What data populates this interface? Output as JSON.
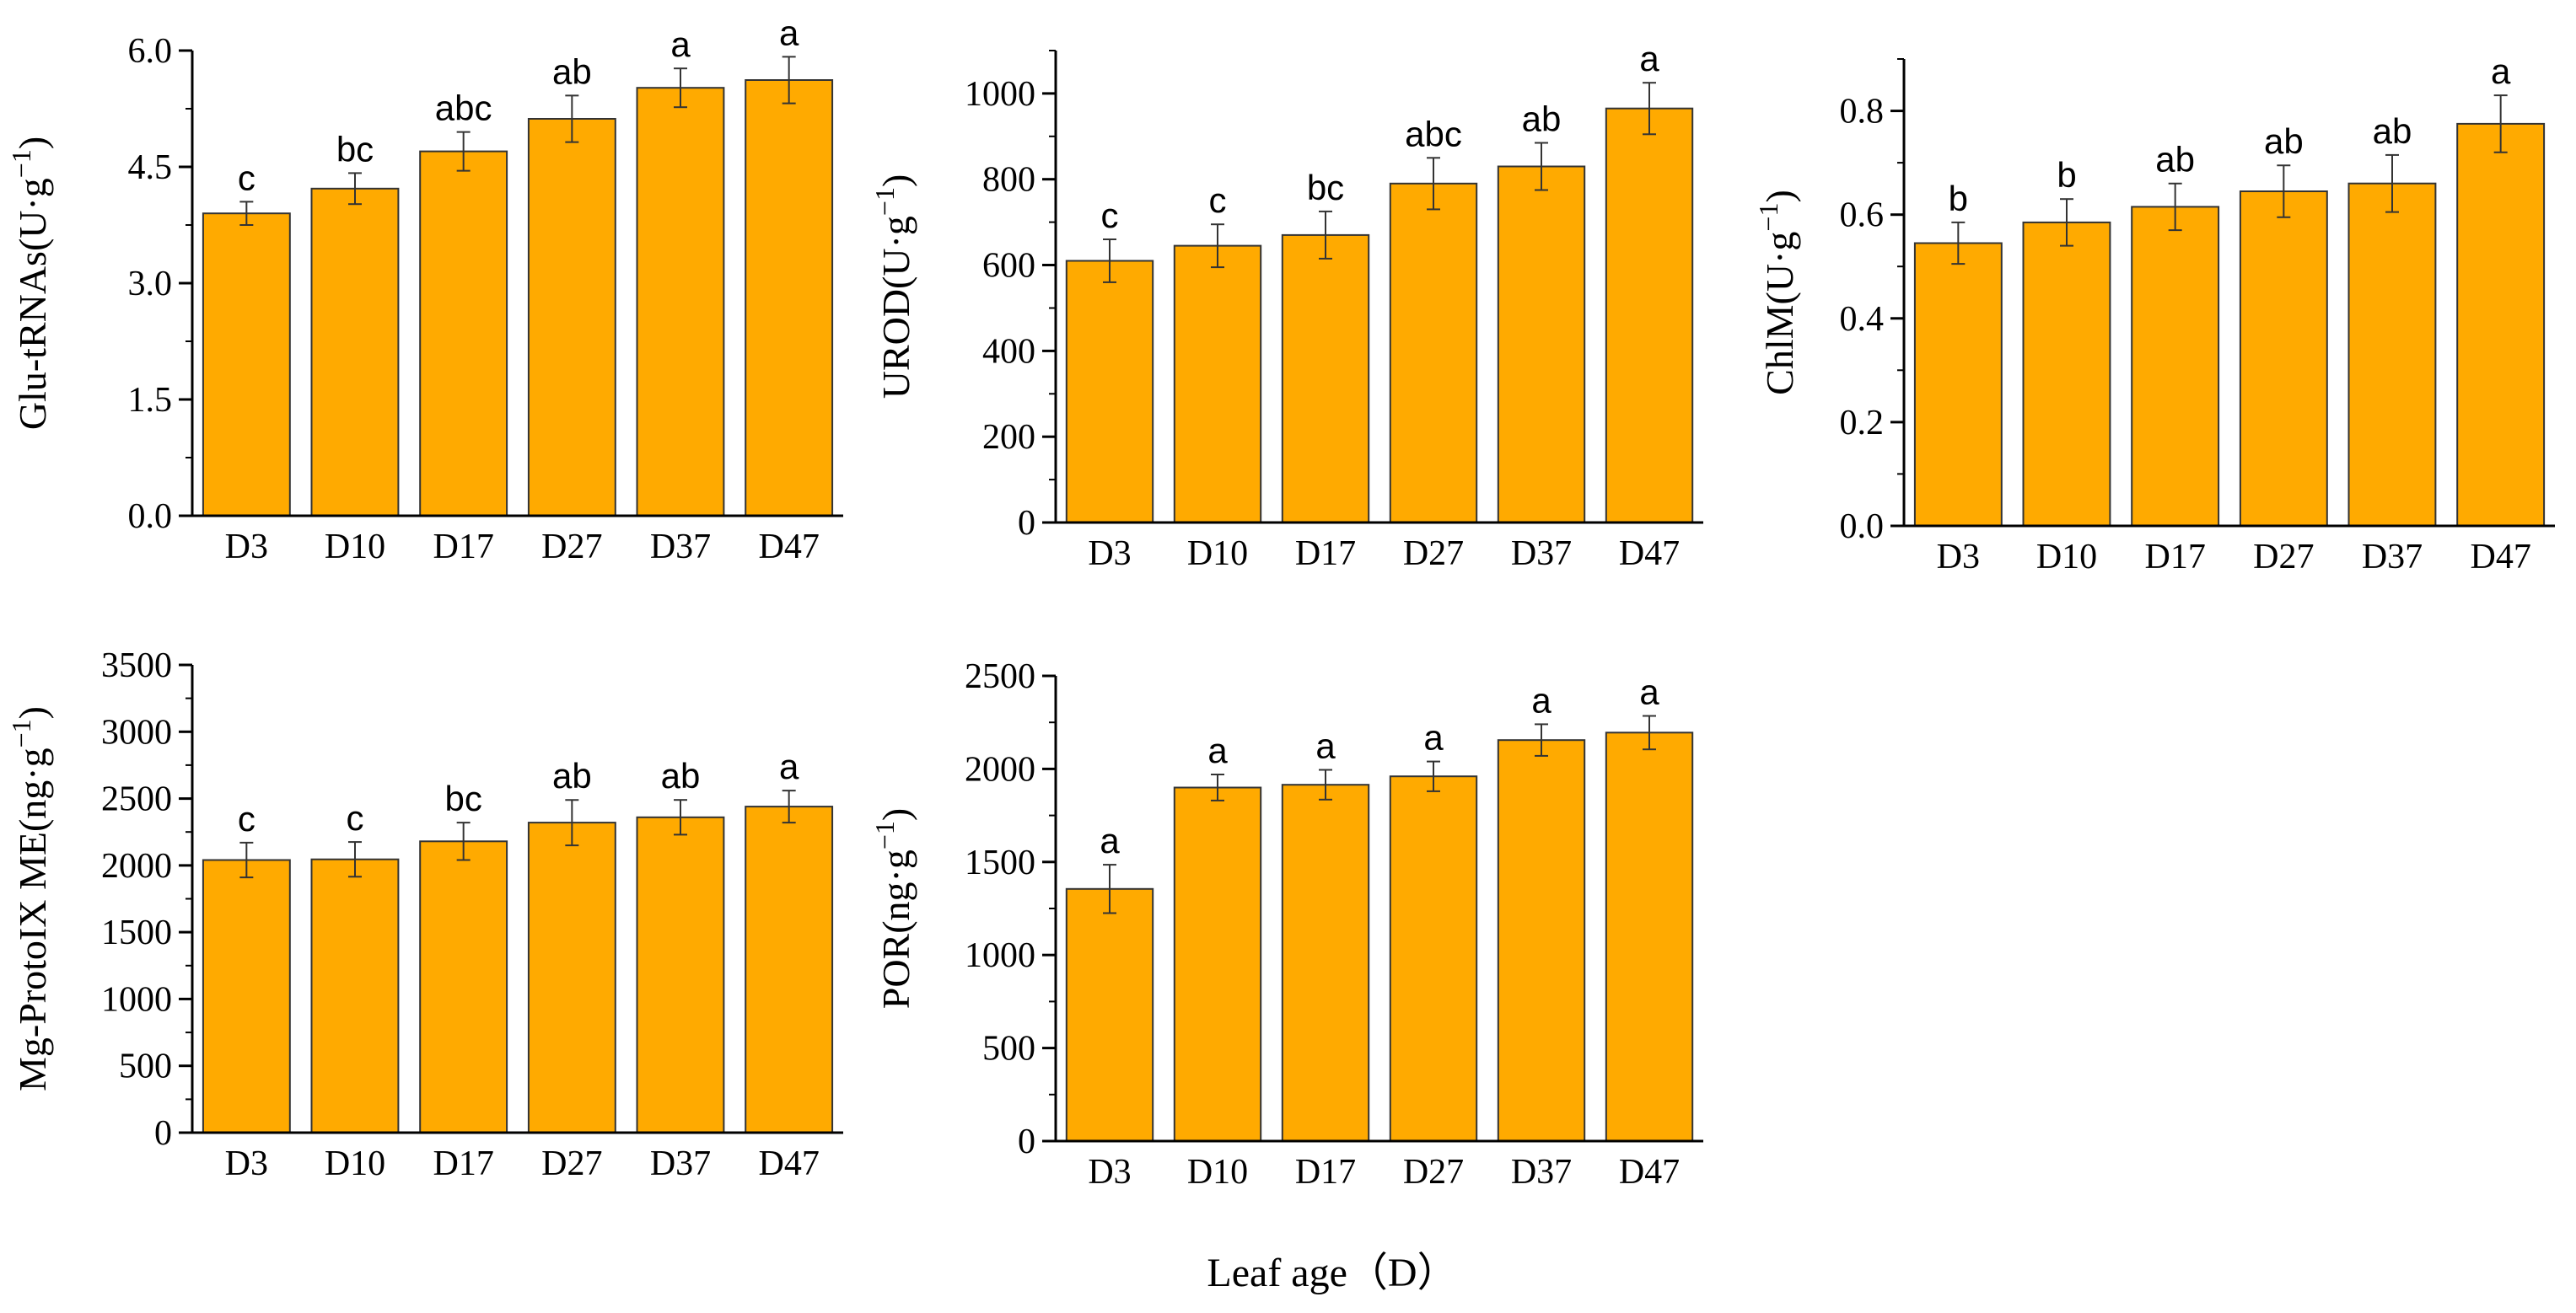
{
  "figure": {
    "x_axis_label": "Leaf age（D）",
    "bar_color": "#FFAA00",
    "bar_stroke": "#333333",
    "axis_color": "#000000"
  },
  "chart_data": [
    {
      "type": "bar",
      "ylabel": "Glu-tRNAs(U·g",
      "ylabel_sup": "−1",
      "ylabel_close": ")",
      "categories": [
        "D3",
        "D10",
        "D17",
        "D27",
        "D37",
        "D47"
      ],
      "values": [
        3.9,
        4.22,
        4.7,
        5.12,
        5.52,
        5.62
      ],
      "errors": [
        0.15,
        0.2,
        0.25,
        0.3,
        0.25,
        0.3
      ],
      "sig_letters": [
        "c",
        "bc",
        "abc",
        "ab",
        "a",
        "a"
      ],
      "ylim": [
        0,
        6
      ],
      "yticks": [
        "0.0",
        "1.5",
        "3.0",
        "4.5",
        "6.0"
      ],
      "ytick_values": [
        0,
        1.5,
        3,
        4.5,
        6
      ],
      "minor_step": 0.75
    },
    {
      "type": "bar",
      "ylabel": "UROD(U·g",
      "ylabel_sup": "−1",
      "ylabel_close": ")",
      "categories": [
        "D3",
        "D10",
        "D17",
        "D27",
        "D37",
        "D47"
      ],
      "values": [
        610,
        645,
        670,
        790,
        830,
        965
      ],
      "errors": [
        50,
        50,
        55,
        60,
        55,
        60
      ],
      "sig_letters": [
        "c",
        "c",
        "bc",
        "abc",
        "ab",
        "a"
      ],
      "ylim": [
        0,
        1100
      ],
      "yticks": [
        "0",
        "200",
        "400",
        "600",
        "800",
        "1000"
      ],
      "ytick_values": [
        0,
        200,
        400,
        600,
        800,
        1000
      ],
      "minor_step": 100
    },
    {
      "type": "bar",
      "ylabel": "ChlM(U·g",
      "ylabel_sup": "−1",
      "ylabel_close": ")",
      "categories": [
        "D3",
        "D10",
        "D17",
        "D27",
        "D37",
        "D47"
      ],
      "values": [
        0.545,
        0.585,
        0.615,
        0.645,
        0.66,
        0.775
      ],
      "errors": [
        0.04,
        0.045,
        0.045,
        0.05,
        0.055,
        0.055
      ],
      "sig_letters": [
        "b",
        "b",
        "ab",
        "ab",
        "ab",
        "a"
      ],
      "ylim": [
        0,
        0.9
      ],
      "yticks": [
        "0.0",
        "0.2",
        "0.4",
        "0.6",
        "0.8"
      ],
      "ytick_values": [
        0,
        0.2,
        0.4,
        0.6,
        0.8
      ],
      "minor_step": 0.1
    },
    {
      "type": "bar",
      "ylabel": "Mg-ProtoIX ME(ng·g",
      "ylabel_sup": "−1",
      "ylabel_close": ")",
      "categories": [
        "D3",
        "D10",
        "D17",
        "D27",
        "D37",
        "D47"
      ],
      "values": [
        2040,
        2045,
        2180,
        2320,
        2360,
        2440
      ],
      "errors": [
        130,
        130,
        140,
        170,
        130,
        120
      ],
      "sig_letters": [
        "c",
        "c",
        "bc",
        "ab",
        "ab",
        "a"
      ],
      "ylim": [
        0,
        3500
      ],
      "yticks": [
        "0",
        "500",
        "1000",
        "1500",
        "2000",
        "2500",
        "3000",
        "3500"
      ],
      "ytick_values": [
        0,
        500,
        1000,
        1500,
        2000,
        2500,
        3000,
        3500
      ],
      "minor_step": 250
    },
    {
      "type": "bar",
      "ylabel": "POR(ng·g",
      "ylabel_sup": "−1",
      "ylabel_close": ")",
      "categories": [
        "D3",
        "D10",
        "D17",
        "D27",
        "D37",
        "D47"
      ],
      "values": [
        1355,
        1900,
        1915,
        1960,
        2155,
        2195
      ],
      "errors": [
        130,
        70,
        80,
        80,
        85,
        90
      ],
      "sig_letters": [
        "a",
        "a",
        "a",
        "a",
        "a",
        "a"
      ],
      "ylim": [
        0,
        2500
      ],
      "yticks": [
        "0",
        "500",
        "1000",
        "1500",
        "2000",
        "2500"
      ],
      "ytick_values": [
        0,
        500,
        1000,
        1500,
        2000,
        2500
      ],
      "minor_step": 250
    }
  ]
}
